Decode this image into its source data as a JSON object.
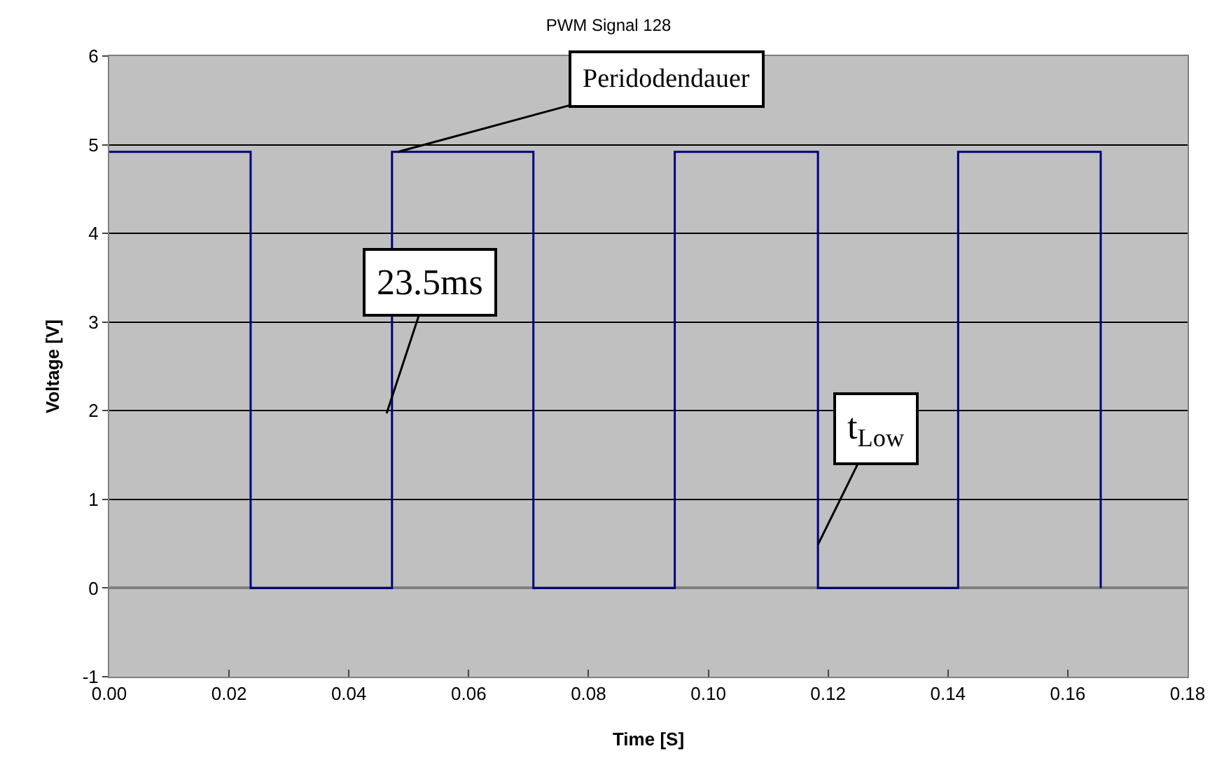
{
  "chart_data": {
    "type": "line",
    "title": "PWM Signal 128",
    "xlabel": "Time [S]",
    "ylabel": "Voltage [V]",
    "x": [
      0,
      0.0236,
      0.0236,
      0.0472,
      0.0472,
      0.0708,
      0.0708,
      0.0944,
      0.0944,
      0.1183,
      0.1183,
      0.1417,
      0.1417,
      0.1655,
      0.1655
    ],
    "series": [
      {
        "color": "#000080",
        "values": [
          4.92,
          4.92,
          0,
          0,
          4.92,
          4.92,
          0,
          0,
          4.92,
          4.92,
          0,
          0,
          4.92,
          4.92,
          0
        ]
      }
    ],
    "xlim": [
      0,
      0.18
    ],
    "xticks": [
      {
        "value": 0,
        "label": "0.00"
      },
      {
        "value": 0.02,
        "label": "0.02"
      },
      {
        "value": 0.04,
        "label": "0.04"
      },
      {
        "value": 0.06,
        "label": "0.06"
      },
      {
        "value": 0.08,
        "label": "0.08"
      },
      {
        "value": 0.1,
        "label": "0.10"
      },
      {
        "value": 0.12,
        "label": "0.12"
      },
      {
        "value": 0.14,
        "label": "0.14"
      },
      {
        "value": 0.16,
        "label": "0.16"
      },
      {
        "value": 0.18,
        "label": "0.18"
      }
    ],
    "ylim": [
      -1,
      6
    ],
    "yticks": [
      -1,
      0,
      1,
      2,
      3,
      4,
      5,
      6
    ],
    "grid": "y",
    "marker": "none",
    "line_style": "solid",
    "annotations": [
      {
        "text": "Peridodendauer",
        "x": 0.0482,
        "y": 4.92
      },
      {
        "text": "23.5ms",
        "x": 0.0463,
        "y": 1.97
      },
      {
        "text": "t$_{Low}$",
        "x": 0.1183,
        "y": 0.49
      }
    ]
  }
}
